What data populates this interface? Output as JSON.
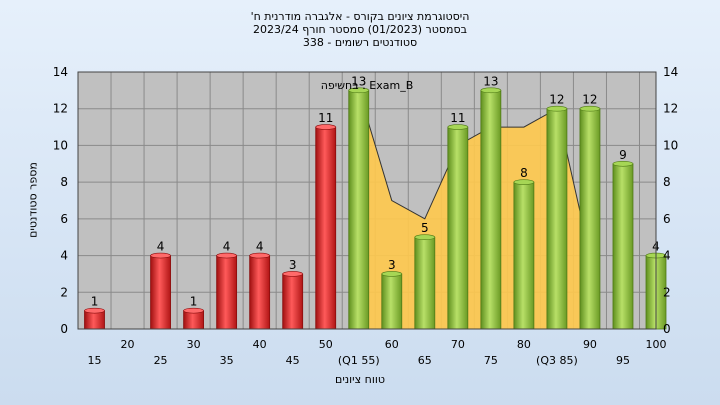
{
  "title_lines": [
    "'היסטוגרמת ציונים בקורס - אלגברה מודרנית ח",
    "בסמסטר  (01/2023)  סמסטר חורף  2023/24",
    "סטודנטים רשומים - 338"
  ],
  "colors": {
    "fail_bar": "#e02a2a",
    "pass_bar": "#8cc43c",
    "area": "#ffc94d",
    "plot_bg": "#c0c0c0",
    "grid": "#8a8a8a"
  },
  "chart_data": {
    "type": "bar",
    "title": "'היסטוגרמת ציונים בקורס - אלגברה מודרנית ח",
    "xlabel": "טווח ציונים",
    "ylabel": "מספר סטודנטים",
    "ylim": [
      0,
      14
    ],
    "yticks": [
      "0",
      "2",
      "4",
      "6",
      "8",
      "10",
      "12",
      "14"
    ],
    "x_tick_labels": [
      "15",
      "20",
      "25",
      "30",
      "35",
      "40",
      "45",
      "50",
      "(Q1 55)",
      "60",
      "65",
      "70",
      "75",
      "80",
      "(Q3 85)",
      "90",
      "95",
      "100"
    ],
    "categories": [
      15,
      20,
      25,
      30,
      35,
      40,
      45,
      50,
      55,
      60,
      65,
      70,
      75,
      80,
      85,
      90,
      95,
      100
    ],
    "values": [
      1,
      0,
      4,
      1,
      4,
      4,
      3,
      11,
      13,
      3,
      5,
      11,
      13,
      8,
      12,
      12,
      9,
      4
    ],
    "data_labels": [
      "1",
      "",
      "4",
      "1",
      "4",
      "4",
      "3",
      "11",
      "13",
      "3",
      "5",
      "11",
      "13",
      "8",
      "12",
      "12",
      "9",
      "4"
    ],
    "pass_threshold": 55,
    "overlay_series": {
      "name": "בחשיפה : Exam_B",
      "type": "area",
      "x": [
        55,
        60,
        65,
        70,
        75,
        80,
        85,
        90
      ],
      "values": [
        13,
        7,
        6,
        10,
        11,
        11,
        12,
        4
      ]
    },
    "grid": true,
    "legend": "top-center"
  }
}
